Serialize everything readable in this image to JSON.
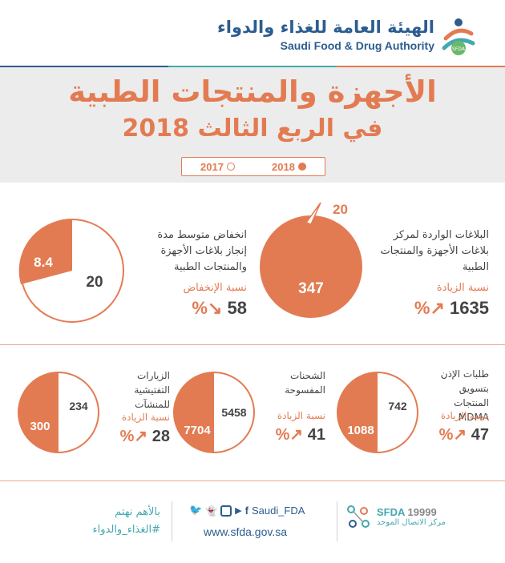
{
  "header": {
    "logo_ar": "الهيئة العامة للغذاء والدواء",
    "logo_en": "Saudi Food & Drug Authority",
    "logo_badge": "SFDA"
  },
  "title": {
    "line1": "الأجهزة والمنتجات الطبية",
    "line2": "في الربع الثالث 2018"
  },
  "legend": {
    "year_2018": "2018",
    "year_2017": "2017"
  },
  "colors": {
    "accent": "#e37b52",
    "blue": "#2c5d8f",
    "teal": "#44a8b0"
  },
  "stats": {
    "reports": {
      "label": "البلاغات الواردة لمركز بلاغات الأجهزة والمنتجات الطبية",
      "value_2017": "20",
      "value_2018": "347",
      "change_label": "نسبة الزيادة",
      "change_value": "1635"
    },
    "completion_time": {
      "label": "انخفاض متوسط مدة إنجاز بلاغات الأجهزة والمنتجات الطبية",
      "value_2017": "20",
      "value_2018": "8.4",
      "change_label": "نسبة الإنخفاض",
      "change_value": "58"
    },
    "mdma": {
      "label": "طلبات الإذن بتسويق المنتجات MDMA",
      "value_2017": "742",
      "value_2018": "1088",
      "change_label": "نسبة الزيادة",
      "change_value": "47"
    },
    "shipments": {
      "label": "الشحنات المفسوحة",
      "value_2017": "5458",
      "value_2018": "7704",
      "change_label": "نسبة الزيادة",
      "change_value": "41"
    },
    "inspections": {
      "label": "الزيارات التفتيشية للمنشآت",
      "value_2017": "234",
      "value_2018": "300",
      "change_label": "نسبة الزيادة",
      "change_value": "28"
    }
  },
  "footer": {
    "slogan": "بالأهم نهتم",
    "hashtag": "#الغذاء_والدواء",
    "handle": "Saudi_FDA",
    "website": "www.sfda.gov.sa",
    "sfda_label": "SFDA",
    "hotline": "19999",
    "call_center": "مركز الاتصال الموحد"
  }
}
